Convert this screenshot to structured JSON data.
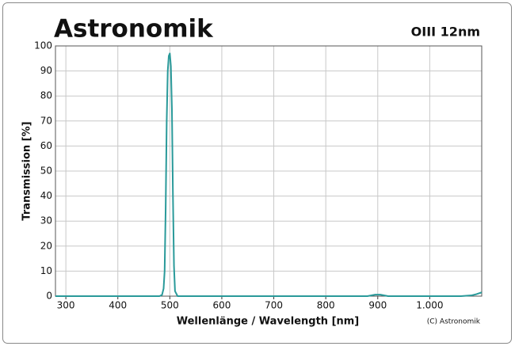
{
  "chart_data": {
    "type": "line",
    "logo": "Astronomik",
    "title": "OIII 12nm",
    "xlabel": "Wellenlänge / Wavelength [nm]",
    "ylabel": "Transmission [%]",
    "credit": "(C) Astronomik",
    "x": [
      280,
      480,
      485,
      488,
      490,
      492,
      494,
      496,
      498,
      500,
      502,
      504,
      506,
      508,
      510,
      515,
      600,
      880,
      895,
      905,
      920,
      1000,
      1060,
      1080,
      1090,
      1100
    ],
    "series": [
      {
        "name": "OIII 12nm",
        "color": "#2a9a9a",
        "values": [
          0,
          0,
          0.5,
          3,
          10,
          35,
          70,
          90,
          96,
          97,
          92,
          75,
          40,
          12,
          2,
          0,
          0,
          0,
          0.6,
          0.6,
          0,
          0,
          0,
          0.3,
          0.8,
          1.5
        ]
      }
    ],
    "xlim": [
      280,
      1100
    ],
    "ylim": [
      0,
      100
    ],
    "xticks": [
      300,
      400,
      500,
      600,
      700,
      800,
      900,
      {
        "value": 1000,
        "label": "1.000"
      }
    ],
    "yticks": [
      0,
      10,
      20,
      30,
      40,
      50,
      60,
      70,
      80,
      90,
      100
    ],
    "grid": true
  }
}
